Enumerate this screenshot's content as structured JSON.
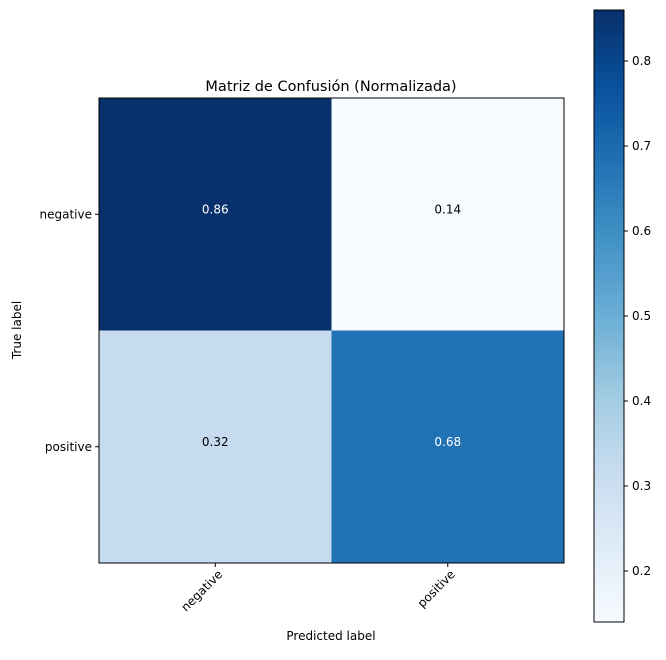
{
  "chart_data": {
    "type": "heatmap",
    "title": "Matriz de Confusión (Normalizada)",
    "xlabel": "Predicted label",
    "ylabel": "True label",
    "x_categories": [
      "negative",
      "positive"
    ],
    "y_categories": [
      "negative",
      "positive"
    ],
    "values": [
      [
        0.86,
        0.14
      ],
      [
        0.32,
        0.68
      ]
    ],
    "value_labels": [
      [
        "0.86",
        "0.14"
      ],
      [
        "0.32",
        "0.68"
      ]
    ],
    "colormap": "Blues",
    "colorbar": {
      "range": [
        0.14,
        0.86
      ],
      "ticks": [
        0.2,
        0.3,
        0.4,
        0.5,
        0.6,
        0.7,
        0.8
      ],
      "tick_labels": [
        "0.2",
        "0.3",
        "0.4",
        "0.5",
        "0.6",
        "0.7",
        "0.8"
      ]
    },
    "xtick_rotation": 45,
    "grid": false
  }
}
